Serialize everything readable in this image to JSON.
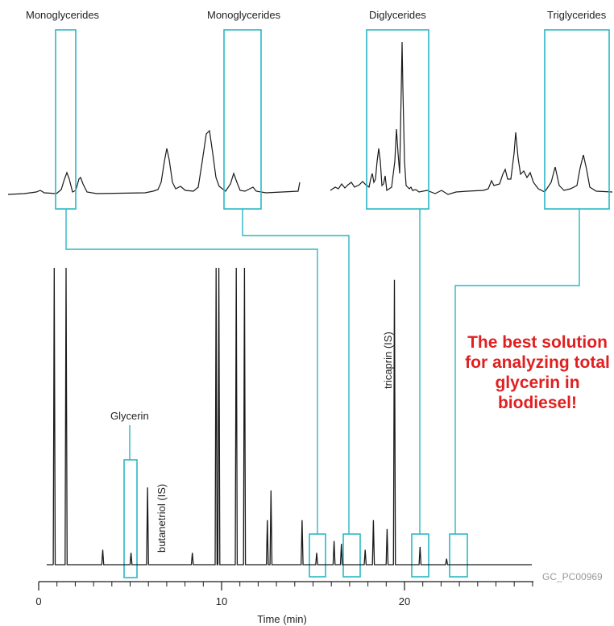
{
  "chart_data": {
    "type": "line",
    "xlabel": "Time (min)",
    "xlim": [
      0,
      27
    ],
    "x_ticks": [
      0,
      10,
      20
    ],
    "x_tick_labels": [
      "0",
      "10",
      "20"
    ],
    "grid": false,
    "series": [
      {
        "peaks": [
          {
            "time": 0.85,
            "height": 1.0
          },
          {
            "time": 1.5,
            "height": 1.0
          },
          {
            "time": 3.5,
            "height": 0.05
          },
          {
            "time": 5.05,
            "height": 0.04
          },
          {
            "time": 5.95,
            "height": 0.26
          },
          {
            "time": 8.4,
            "height": 0.04
          },
          {
            "time": 9.7,
            "height": 1.0
          },
          {
            "time": 9.85,
            "height": 1.0
          },
          {
            "time": 10.8,
            "height": 1.0
          },
          {
            "time": 11.25,
            "height": 1.0
          },
          {
            "time": 12.5,
            "height": 0.15
          },
          {
            "time": 12.7,
            "height": 0.25
          },
          {
            "time": 14.4,
            "height": 0.15
          },
          {
            "time": 15.2,
            "height": 0.04
          },
          {
            "time": 16.15,
            "height": 0.08
          },
          {
            "time": 16.55,
            "height": 0.07
          },
          {
            "time": 17.85,
            "height": 0.05
          },
          {
            "time": 18.3,
            "height": 0.15
          },
          {
            "time": 19.05,
            "height": 0.12
          },
          {
            "time": 19.45,
            "height": 0.96
          },
          {
            "time": 20.85,
            "height": 0.06
          },
          {
            "time": 22.3,
            "height": 0.02
          }
        ]
      }
    ],
    "annotations": {
      "glycerin": "Glycerin",
      "butanetriol": "butanetriol (IS)",
      "tricaprin": "tricaprin (IS)"
    },
    "insets": [
      {
        "label": "Monoglycerides"
      },
      {
        "label": "Monoglycerides"
      },
      {
        "label": "Diglycerides"
      },
      {
        "label": "Triglycerides"
      }
    ],
    "figure_code": "GC_PC00969",
    "callout": "The best solution for analyzing total glycerin in biodiesel!",
    "colors": {
      "trace": "#1a1a1a",
      "highlight": "#2ab7c4",
      "callout": "#e02020"
    }
  }
}
